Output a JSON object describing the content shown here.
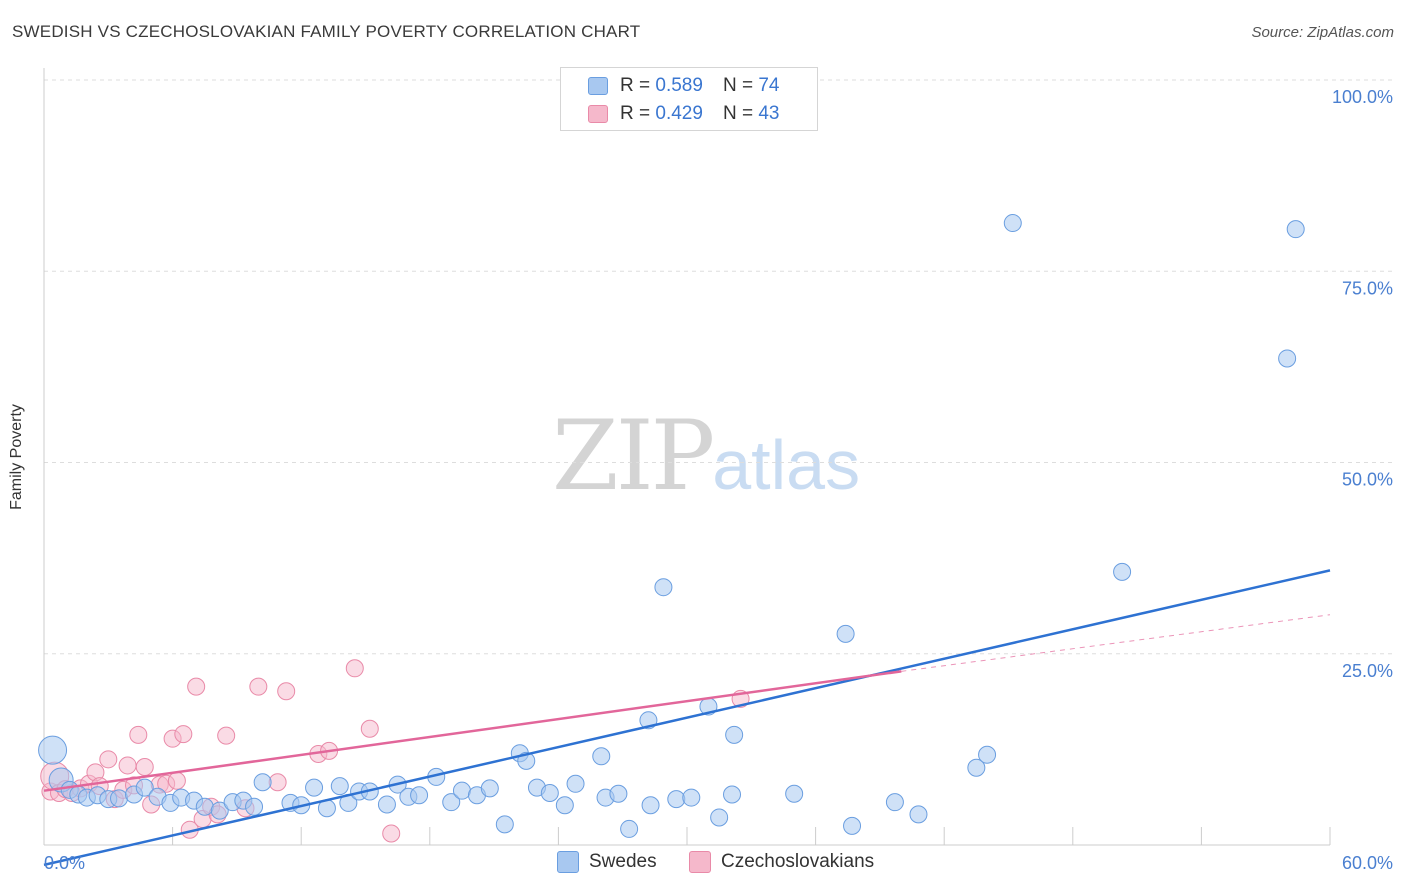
{
  "header": {
    "title": "SWEDISH VS CZECHOSLOVAKIAN FAMILY POVERTY CORRELATION CHART",
    "source": "Source: ZipAtlas.com"
  },
  "watermark": {
    "zip": "ZIP",
    "atlas": "atlas"
  },
  "legend": {
    "rows": [
      {
        "r_label": "R = ",
        "r_value": "0.589",
        "n_label": "N = ",
        "n_value": "74"
      },
      {
        "r_label": "R = ",
        "r_value": "0.429",
        "n_label": "N = ",
        "n_value": "43"
      }
    ]
  },
  "bottom_legend": {
    "swedes": "Swedes",
    "czechoslovakians": "Czechoslovakians"
  },
  "colors": {
    "swedes_fill": "#a8c8f0",
    "swedes_stroke": "#6a9ee0",
    "swedes_line": "#2e72d2",
    "czech_fill": "#f5b8cb",
    "czech_stroke": "#e98aa8",
    "czech_line": "#e2669a",
    "tick_text": "#4a7fd0",
    "grid": "#dddddd"
  },
  "chart_data": {
    "type": "scatter",
    "title": "SWEDISH VS CZECHOSLOVAKIAN FAMILY POVERTY CORRELATION CHART",
    "xlabel": "",
    "ylabel": "Family Poverty",
    "xlim": [
      0,
      60
    ],
    "ylim": [
      0,
      100
    ],
    "x_tick_labels": [
      "0.0%",
      "60.0%"
    ],
    "y_ticks": [
      25,
      50,
      75,
      100
    ],
    "y_tick_labels": [
      "25.0%",
      "50.0%",
      "75.0%",
      "100.0%"
    ],
    "series": [
      {
        "name": "Swedes",
        "R": 0.589,
        "N": 74,
        "trend": {
          "x": [
            0,
            60
          ],
          "y": [
            -2.6,
            35.9
          ],
          "style": "solid"
        },
        "points": [
          [
            0.4,
            12.4
          ],
          [
            0.8,
            8.5
          ],
          [
            1.2,
            7.2
          ],
          [
            1.6,
            6.6
          ],
          [
            2.0,
            6.2
          ],
          [
            2.5,
            6.5
          ],
          [
            3.0,
            6.0
          ],
          [
            3.5,
            6.1
          ],
          [
            4.2,
            6.6
          ],
          [
            4.7,
            7.5
          ],
          [
            5.3,
            6.3
          ],
          [
            5.9,
            5.5
          ],
          [
            6.4,
            6.2
          ],
          [
            7.0,
            5.8
          ],
          [
            7.5,
            5.0
          ],
          [
            8.2,
            4.5
          ],
          [
            8.8,
            5.6
          ],
          [
            9.3,
            5.8
          ],
          [
            9.8,
            5.0
          ],
          [
            10.2,
            8.2
          ],
          [
            11.5,
            5.5
          ],
          [
            12.0,
            5.2
          ],
          [
            12.6,
            7.5
          ],
          [
            13.2,
            4.8
          ],
          [
            13.8,
            7.7
          ],
          [
            14.2,
            5.5
          ],
          [
            14.7,
            7.0
          ],
          [
            15.2,
            7.0
          ],
          [
            16.0,
            5.3
          ],
          [
            16.5,
            7.9
          ],
          [
            17.0,
            6.3
          ],
          [
            17.5,
            6.5
          ],
          [
            18.3,
            8.9
          ],
          [
            19.0,
            5.6
          ],
          [
            19.5,
            7.1
          ],
          [
            20.2,
            6.5
          ],
          [
            20.8,
            7.4
          ],
          [
            21.5,
            2.7
          ],
          [
            22.2,
            12.0
          ],
          [
            22.5,
            11.0
          ],
          [
            23.0,
            7.5
          ],
          [
            23.6,
            6.8
          ],
          [
            24.3,
            5.2
          ],
          [
            24.8,
            8.0
          ],
          [
            26.0,
            11.6
          ],
          [
            26.2,
            6.2
          ],
          [
            26.8,
            6.7
          ],
          [
            27.3,
            2.1
          ],
          [
            28.2,
            16.3
          ],
          [
            28.3,
            5.2
          ],
          [
            28.9,
            33.7
          ],
          [
            29.5,
            6.0
          ],
          [
            30.2,
            6.2
          ],
          [
            31.0,
            18.1
          ],
          [
            31.5,
            3.6
          ],
          [
            32.1,
            6.6
          ],
          [
            32.2,
            14.4
          ],
          [
            35.0,
            6.7
          ],
          [
            37.4,
            27.6
          ],
          [
            37.7,
            2.5
          ],
          [
            39.7,
            5.6
          ],
          [
            40.8,
            4.0
          ],
          [
            43.5,
            10.1
          ],
          [
            44.0,
            11.8
          ],
          [
            45.2,
            81.3
          ],
          [
            50.3,
            35.7
          ],
          [
            58.0,
            63.6
          ],
          [
            58.4,
            80.5
          ]
        ]
      },
      {
        "name": "Czechoslovakians",
        "R": 0.429,
        "N": 43,
        "trend": {
          "x": [
            0,
            40
          ],
          "y": [
            7.1,
            22.7
          ],
          "style": "solid",
          "extension": {
            "x": [
              40,
              60
            ],
            "y": [
              22.7,
              30.1
            ],
            "style": "dashed"
          }
        },
        "points": [
          [
            0.3,
            7.0
          ],
          [
            0.5,
            9.0
          ],
          [
            0.7,
            6.8
          ],
          [
            1.0,
            7.3
          ],
          [
            1.3,
            6.8
          ],
          [
            1.7,
            7.4
          ],
          [
            2.1,
            8.0
          ],
          [
            2.4,
            9.5
          ],
          [
            2.6,
            7.7
          ],
          [
            3.0,
            11.2
          ],
          [
            3.3,
            6.0
          ],
          [
            3.7,
            7.2
          ],
          [
            3.9,
            10.4
          ],
          [
            4.2,
            7.8
          ],
          [
            4.4,
            14.4
          ],
          [
            4.7,
            10.2
          ],
          [
            5.0,
            5.3
          ],
          [
            5.4,
            7.9
          ],
          [
            5.7,
            8.0
          ],
          [
            6.0,
            13.9
          ],
          [
            6.2,
            8.4
          ],
          [
            6.5,
            14.5
          ],
          [
            6.8,
            2.0
          ],
          [
            7.1,
            20.7
          ],
          [
            7.4,
            3.4
          ],
          [
            7.8,
            5.0
          ],
          [
            8.1,
            4.0
          ],
          [
            8.5,
            14.3
          ],
          [
            9.4,
            4.8
          ],
          [
            10.0,
            20.7
          ],
          [
            10.9,
            8.2
          ],
          [
            11.3,
            20.1
          ],
          [
            12.8,
            11.9
          ],
          [
            13.3,
            12.3
          ],
          [
            14.5,
            23.1
          ],
          [
            15.2,
            15.2
          ],
          [
            16.2,
            1.5
          ],
          [
            32.5,
            19.1
          ]
        ]
      }
    ]
  }
}
